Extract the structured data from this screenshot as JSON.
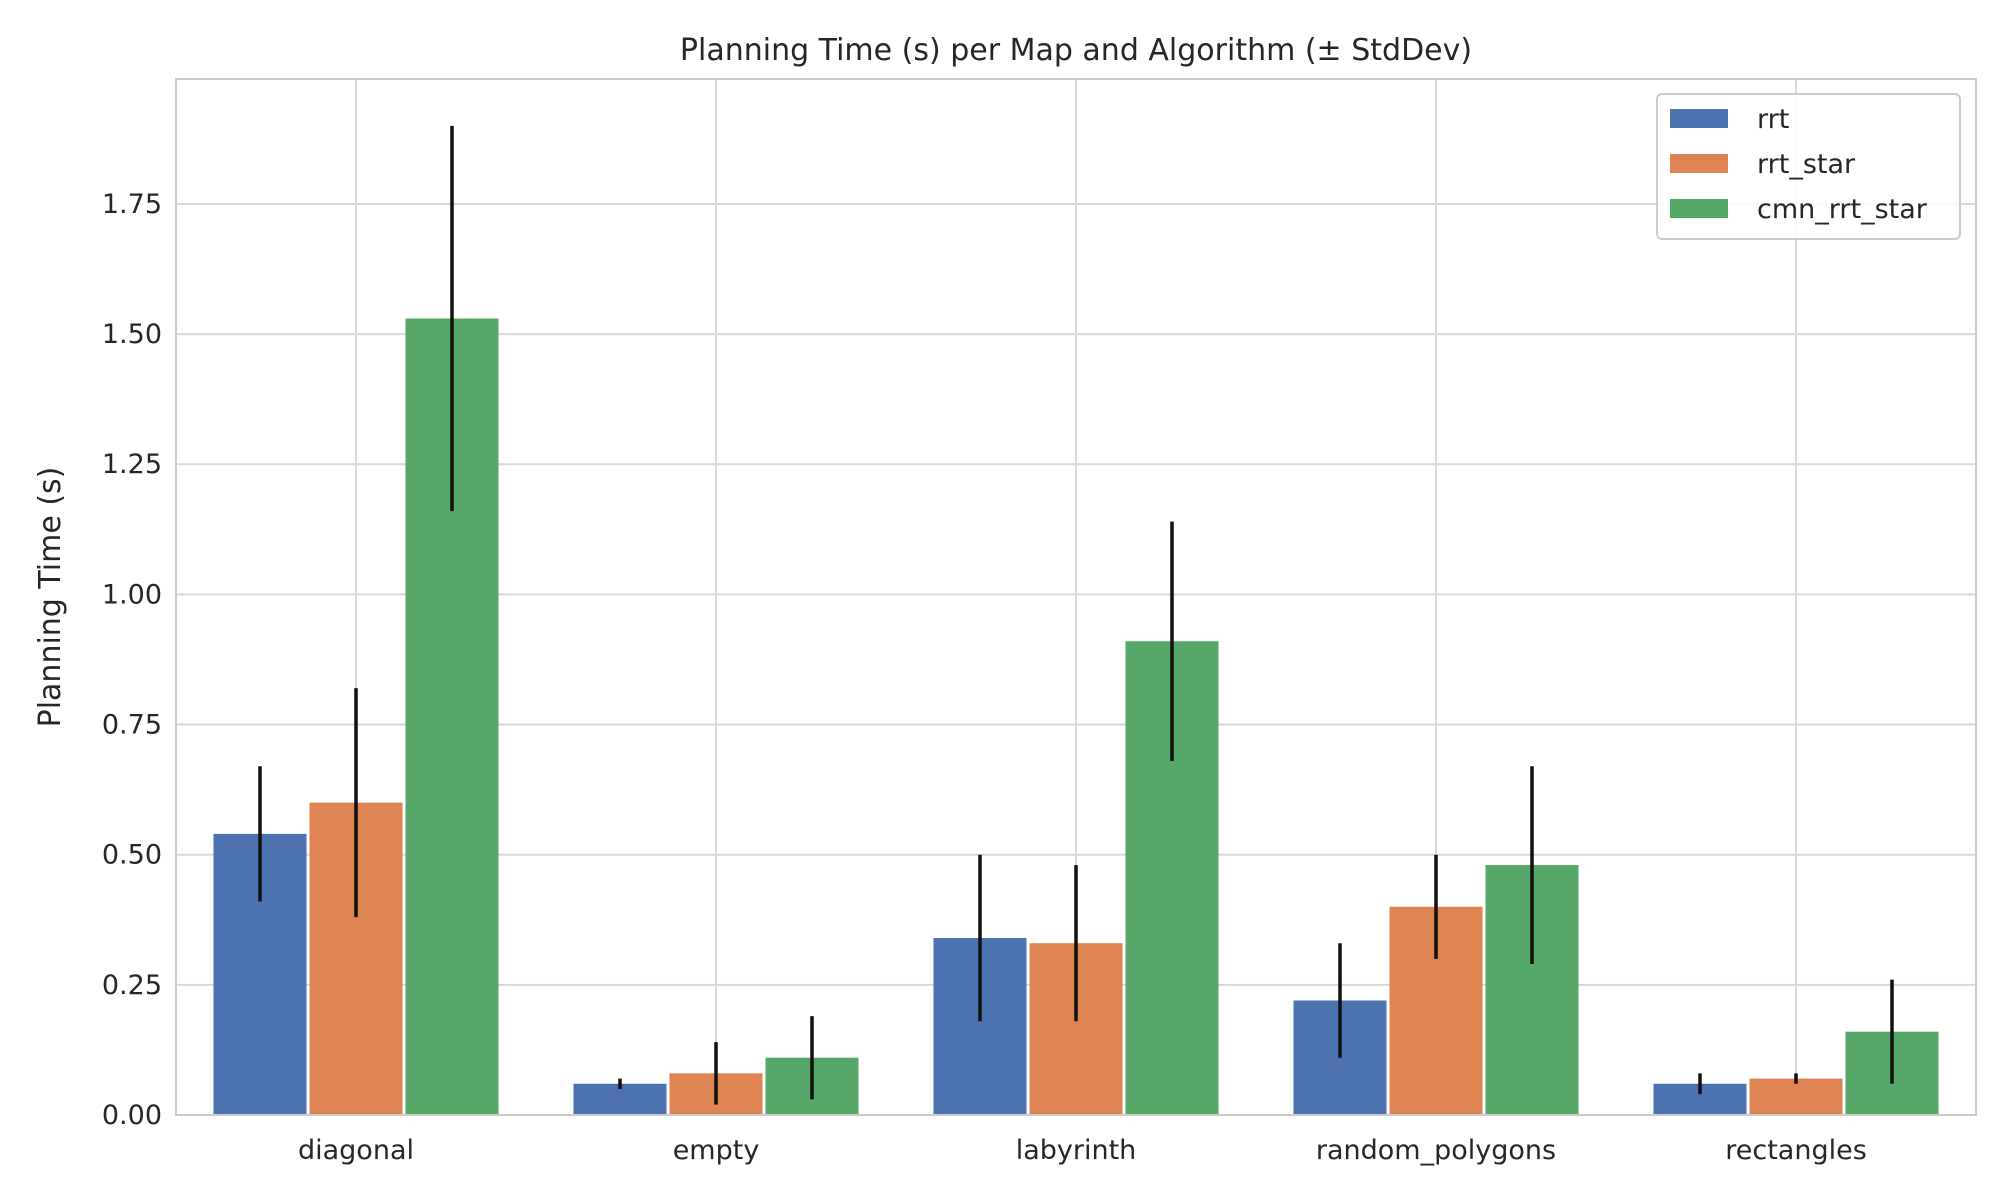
{
  "chart_data": {
    "type": "bar",
    "title": "Planning Time (s) per Map and Algorithm (± StdDev)",
    "xlabel": "",
    "ylabel": "Planning Time (s)",
    "categories": [
      "diagonal",
      "empty",
      "labyrinth",
      "random_polygons",
      "rectangles"
    ],
    "series": [
      {
        "name": "rrt",
        "color": "#4c72b0",
        "values": [
          0.54,
          0.06,
          0.34,
          0.22,
          0.06
        ],
        "std": [
          0.13,
          0.01,
          0.16,
          0.11,
          0.02
        ]
      },
      {
        "name": "rrt_star",
        "color": "#dd8452",
        "values": [
          0.6,
          0.08,
          0.33,
          0.4,
          0.07
        ],
        "std": [
          0.22,
          0.06,
          0.15,
          0.1,
          0.01
        ]
      },
      {
        "name": "cmn_rrt_star",
        "color": "#55a868",
        "values": [
          1.53,
          0.11,
          0.91,
          0.48,
          0.16
        ],
        "std": [
          0.37,
          0.08,
          0.23,
          0.19,
          0.1
        ]
      }
    ],
    "ylim": [
      0,
      1.99
    ],
    "yticks": [
      "0.00",
      "0.25",
      "0.50",
      "0.75",
      "1.00",
      "1.25",
      "1.50",
      "1.75"
    ],
    "grid": true,
    "legend_position": "top-right",
    "error_bar_color": "#111111"
  }
}
